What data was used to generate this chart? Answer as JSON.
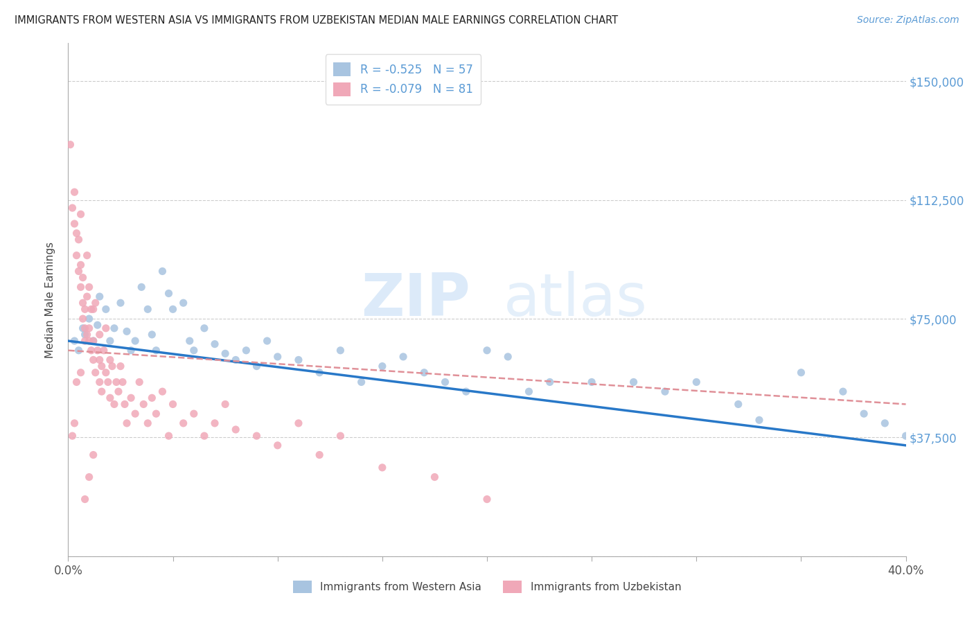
{
  "title": "IMMIGRANTS FROM WESTERN ASIA VS IMMIGRANTS FROM UZBEKISTAN MEDIAN MALE EARNINGS CORRELATION CHART",
  "source": "Source: ZipAtlas.com",
  "ylabel": "Median Male Earnings",
  "yticks": [
    0,
    37500,
    75000,
    112500,
    150000
  ],
  "ytick_labels": [
    "",
    "$37,500",
    "$75,000",
    "$112,500",
    "$150,000"
  ],
  "xlim": [
    0.0,
    0.4
  ],
  "ylim": [
    0,
    162000
  ],
  "legend_blue_r": "-0.525",
  "legend_blue_n": "57",
  "legend_pink_r": "-0.079",
  "legend_pink_n": "81",
  "blue_color": "#a8c4e0",
  "pink_color": "#f0a8b8",
  "blue_line_color": "#2878c8",
  "pink_line_color": "#e09098",
  "watermark_zip": "ZIP",
  "watermark_atlas": "atlas",
  "blue_label": "Immigrants from Western Asia",
  "pink_label": "Immigrants from Uzbekistan",
  "blue_scatter_x": [
    0.003,
    0.005,
    0.007,
    0.008,
    0.01,
    0.012,
    0.014,
    0.015,
    0.018,
    0.02,
    0.022,
    0.025,
    0.028,
    0.03,
    0.032,
    0.035,
    0.038,
    0.04,
    0.042,
    0.045,
    0.048,
    0.05,
    0.055,
    0.058,
    0.06,
    0.065,
    0.07,
    0.075,
    0.08,
    0.085,
    0.09,
    0.095,
    0.1,
    0.11,
    0.12,
    0.13,
    0.14,
    0.15,
    0.16,
    0.17,
    0.18,
    0.19,
    0.2,
    0.21,
    0.22,
    0.23,
    0.25,
    0.27,
    0.285,
    0.3,
    0.32,
    0.33,
    0.35,
    0.37,
    0.38,
    0.39,
    0.4
  ],
  "blue_scatter_y": [
    68000,
    65000,
    72000,
    70000,
    75000,
    68000,
    73000,
    82000,
    78000,
    68000,
    72000,
    80000,
    71000,
    65000,
    68000,
    85000,
    78000,
    70000,
    65000,
    90000,
    83000,
    78000,
    80000,
    68000,
    65000,
    72000,
    67000,
    64000,
    62000,
    65000,
    60000,
    68000,
    63000,
    62000,
    58000,
    65000,
    55000,
    60000,
    63000,
    58000,
    55000,
    52000,
    65000,
    63000,
    52000,
    55000,
    55000,
    55000,
    52000,
    55000,
    48000,
    43000,
    58000,
    52000,
    45000,
    42000,
    38000
  ],
  "pink_scatter_x": [
    0.001,
    0.002,
    0.003,
    0.003,
    0.004,
    0.004,
    0.005,
    0.005,
    0.006,
    0.006,
    0.006,
    0.007,
    0.007,
    0.007,
    0.008,
    0.008,
    0.008,
    0.009,
    0.009,
    0.009,
    0.01,
    0.01,
    0.01,
    0.011,
    0.011,
    0.012,
    0.012,
    0.012,
    0.013,
    0.013,
    0.014,
    0.015,
    0.015,
    0.015,
    0.016,
    0.016,
    0.017,
    0.018,
    0.018,
    0.019,
    0.02,
    0.02,
    0.021,
    0.022,
    0.023,
    0.024,
    0.025,
    0.026,
    0.027,
    0.028,
    0.03,
    0.032,
    0.034,
    0.036,
    0.038,
    0.04,
    0.042,
    0.045,
    0.048,
    0.05,
    0.055,
    0.06,
    0.065,
    0.07,
    0.075,
    0.08,
    0.09,
    0.1,
    0.11,
    0.12,
    0.13,
    0.15,
    0.175,
    0.002,
    0.003,
    0.004,
    0.006,
    0.008,
    0.01,
    0.012,
    0.2
  ],
  "pink_scatter_y": [
    130000,
    110000,
    105000,
    115000,
    102000,
    95000,
    90000,
    100000,
    108000,
    85000,
    92000,
    80000,
    75000,
    88000,
    78000,
    72000,
    68000,
    95000,
    70000,
    82000,
    68000,
    85000,
    72000,
    78000,
    65000,
    62000,
    78000,
    68000,
    80000,
    58000,
    65000,
    70000,
    62000,
    55000,
    60000,
    52000,
    65000,
    58000,
    72000,
    55000,
    62000,
    50000,
    60000,
    48000,
    55000,
    52000,
    60000,
    55000,
    48000,
    42000,
    50000,
    45000,
    55000,
    48000,
    42000,
    50000,
    45000,
    52000,
    38000,
    48000,
    42000,
    45000,
    38000,
    42000,
    48000,
    40000,
    38000,
    35000,
    42000,
    32000,
    38000,
    28000,
    25000,
    38000,
    42000,
    55000,
    58000,
    18000,
    25000,
    32000,
    18000
  ]
}
